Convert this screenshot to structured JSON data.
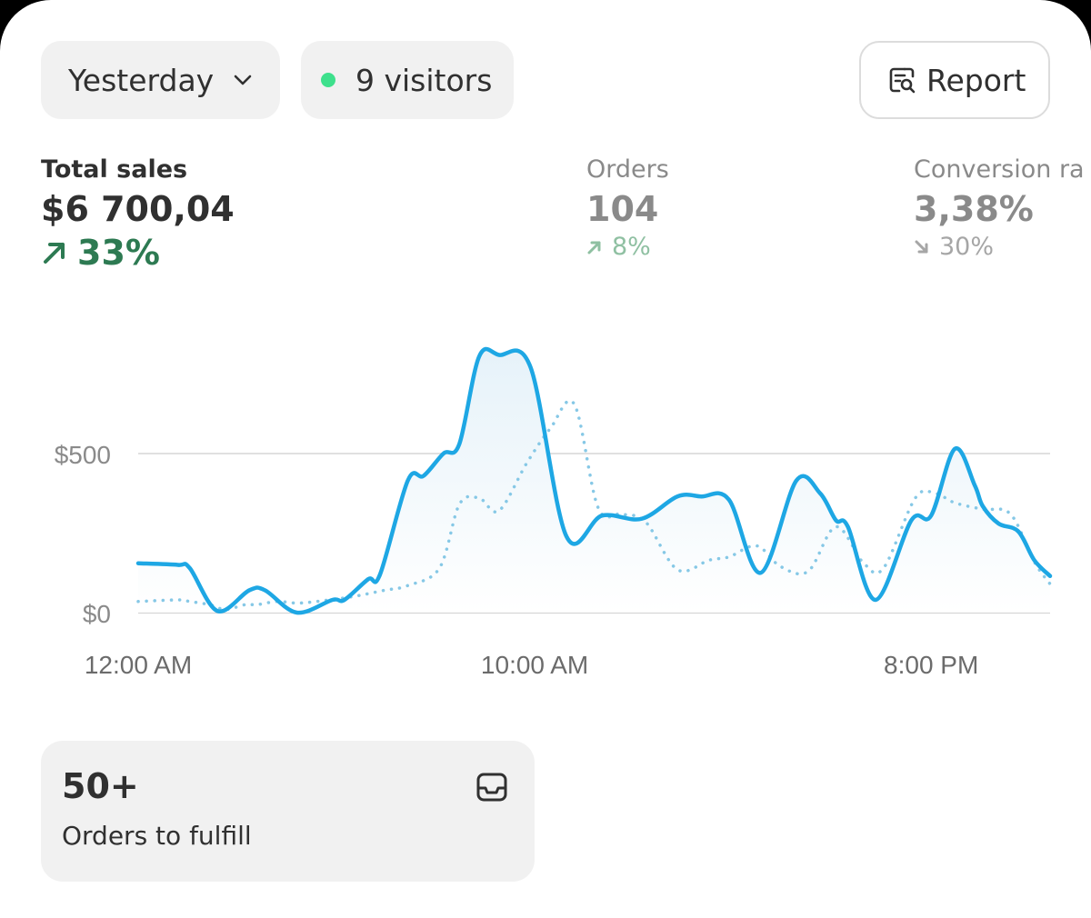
{
  "filters": {
    "date_range": "Yesterday",
    "visitors": "9 visitors"
  },
  "toolbar": {
    "report_label": "Report"
  },
  "icons": {
    "date_chevron": "chevron-down-icon",
    "live_dot": "live-dot-icon",
    "report": "report-search-icon",
    "delta_up": "arrow-up-right-icon",
    "delta_down": "arrow-down-right-icon",
    "fulfill": "inbox-icon"
  },
  "metrics": {
    "total_sales": {
      "label": "Total sales",
      "value": "$6 700,04",
      "delta": "33%",
      "direction": "up"
    },
    "orders": {
      "label": "Orders",
      "value": "104",
      "delta": "8%",
      "direction": "up"
    },
    "conversion": {
      "label": "Conversion ra",
      "value": "3,38%",
      "delta": "30%",
      "direction": "down"
    }
  },
  "chart_data": {
    "type": "line",
    "x_unit": "hour of day",
    "x_tick_labels": [
      {
        "x": 0,
        "label": "12:00 AM"
      },
      {
        "x": 10,
        "label": "10:00 AM"
      },
      {
        "x": 20,
        "label": "8:00 PM"
      }
    ],
    "y_tick_labels": [
      {
        "y": 0,
        "label": "$0"
      },
      {
        "y": 500,
        "label": "$500"
      }
    ],
    "ylim": [
      0,
      900
    ],
    "xlim": [
      0,
      23
    ],
    "grid": true,
    "series": [
      {
        "style": "solid",
        "color": "#1ea7e4",
        "points": [
          [
            0.0,
            155
          ],
          [
            1.0,
            150
          ],
          [
            1.3,
            140
          ],
          [
            2.0,
            5
          ],
          [
            2.8,
            70
          ],
          [
            3.2,
            70
          ],
          [
            4.0,
            0
          ],
          [
            4.9,
            40
          ],
          [
            5.2,
            40
          ],
          [
            5.8,
            105
          ],
          [
            6.1,
            120
          ],
          [
            6.8,
            415
          ],
          [
            7.2,
            430
          ],
          [
            7.7,
            500
          ],
          [
            8.1,
            530
          ],
          [
            8.6,
            805
          ],
          [
            9.1,
            810
          ],
          [
            9.9,
            770
          ],
          [
            10.8,
            240
          ],
          [
            11.7,
            305
          ],
          [
            12.7,
            295
          ],
          [
            13.6,
            365
          ],
          [
            14.2,
            365
          ],
          [
            14.9,
            355
          ],
          [
            15.7,
            125
          ],
          [
            16.6,
            415
          ],
          [
            17.2,
            375
          ],
          [
            17.6,
            290
          ],
          [
            17.9,
            270
          ],
          [
            18.6,
            40
          ],
          [
            19.5,
            290
          ],
          [
            20.0,
            305
          ],
          [
            20.6,
            515
          ],
          [
            21.1,
            400
          ],
          [
            21.3,
            335
          ],
          [
            21.7,
            280
          ],
          [
            22.2,
            255
          ],
          [
            22.6,
            165
          ],
          [
            23.0,
            115
          ]
        ]
      },
      {
        "style": "dotted",
        "color": "#86c8e6",
        "points": [
          [
            0.0,
            35
          ],
          [
            1.0,
            40
          ],
          [
            1.3,
            35
          ],
          [
            1.8,
            25
          ],
          [
            2.2,
            10
          ],
          [
            2.7,
            25
          ],
          [
            3.0,
            25
          ],
          [
            3.5,
            35
          ],
          [
            4.0,
            30
          ],
          [
            4.5,
            35
          ],
          [
            5.4,
            50
          ],
          [
            6.2,
            70
          ],
          [
            6.8,
            85
          ],
          [
            7.6,
            140
          ],
          [
            8.1,
            340
          ],
          [
            8.6,
            360
          ],
          [
            9.1,
            320
          ],
          [
            9.8,
            470
          ],
          [
            10.4,
            580
          ],
          [
            11.0,
            655
          ],
          [
            11.6,
            330
          ],
          [
            12.2,
            310
          ],
          [
            12.8,
            285
          ],
          [
            13.6,
            135
          ],
          [
            14.4,
            165
          ],
          [
            14.9,
            175
          ],
          [
            15.6,
            210
          ],
          [
            16.2,
            145
          ],
          [
            16.9,
            130
          ],
          [
            17.6,
            270
          ],
          [
            18.3,
            155
          ],
          [
            18.8,
            140
          ],
          [
            19.6,
            360
          ],
          [
            20.1,
            375
          ],
          [
            20.6,
            345
          ],
          [
            21.3,
            325
          ],
          [
            22.0,
            310
          ],
          [
            22.6,
            160
          ],
          [
            23.0,
            90
          ]
        ]
      }
    ]
  },
  "fulfill_card": {
    "count": "50+",
    "caption": "Orders to fulfill"
  }
}
